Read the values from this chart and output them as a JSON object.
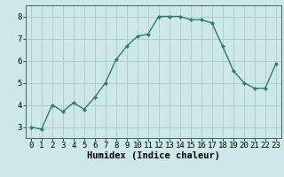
{
  "x": [
    0,
    1,
    2,
    3,
    4,
    5,
    6,
    7,
    8,
    9,
    10,
    11,
    12,
    13,
    14,
    15,
    16,
    17,
    18,
    19,
    20,
    21,
    22,
    23
  ],
  "y": [
    3.0,
    2.9,
    4.0,
    3.7,
    4.1,
    3.8,
    4.35,
    5.0,
    6.05,
    6.65,
    7.1,
    7.2,
    8.0,
    8.0,
    8.0,
    7.85,
    7.85,
    7.7,
    6.65,
    5.55,
    5.0,
    4.75,
    4.75,
    5.85
  ],
  "line_color": "#2e7d6e",
  "marker": "D",
  "marker_size": 2.0,
  "bg_color": "#cce8e8",
  "grid_color": "#aacfcf",
  "xlabel": "Humidex (Indice chaleur)",
  "xlabel_fontsize": 7.5,
  "xlim": [
    -0.5,
    23.5
  ],
  "ylim": [
    2.5,
    8.5
  ],
  "yticks": [
    3,
    4,
    5,
    6,
    7,
    8
  ],
  "xticks": [
    0,
    1,
    2,
    3,
    4,
    5,
    6,
    7,
    8,
    9,
    10,
    11,
    12,
    13,
    14,
    15,
    16,
    17,
    18,
    19,
    20,
    21,
    22,
    23
  ],
  "tick_fontsize": 6.5,
  "line_width": 1.0
}
